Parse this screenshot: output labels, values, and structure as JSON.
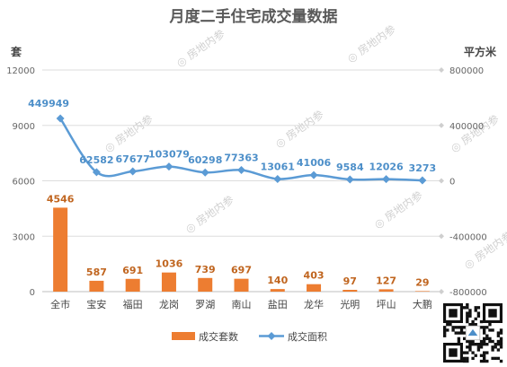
{
  "chart_data": {
    "type": "bar",
    "title": "月度二手住宅成交量数据",
    "categories": [
      "全市",
      "宝安",
      "福田",
      "龙岗",
      "罗湖",
      "南山",
      "盐田",
      "龙华",
      "光明",
      "坪山",
      "大鹏"
    ],
    "y_left_label": "套",
    "y_right_label": "平方米",
    "ylim_left": [
      0,
      12000
    ],
    "yticks_left": [
      "0",
      "3000",
      "6000",
      "9000",
      "12000"
    ],
    "ylim_right": [
      -800000,
      800000
    ],
    "yticks_right": [
      "-800000",
      "-400000",
      "0",
      "400000",
      "800000"
    ],
    "grid": true,
    "legend_position": "bottom",
    "series": [
      {
        "name": "成交套数",
        "type": "bar",
        "axis": "left",
        "color": "#ed7d31",
        "values": [
          4546,
          587,
          691,
          1036,
          739,
          697,
          140,
          403,
          97,
          127,
          29
        ],
        "labels": [
          "4546",
          "587",
          "691",
          "1036",
          "739",
          "697",
          "140",
          "403",
          "97",
          "127",
          "29"
        ]
      },
      {
        "name": "成交面积",
        "type": "line",
        "axis": "right",
        "color": "#5b9bd5",
        "values": [
          449949,
          62582,
          67677,
          103079,
          60298,
          77363,
          13061,
          41006,
          9584,
          12026,
          3273
        ],
        "labels": [
          "449949",
          "62582",
          "67677",
          "103079",
          "60298",
          "77363",
          "13061",
          "41006",
          "9584",
          "12026",
          "3273"
        ]
      }
    ]
  },
  "watermark": "房地内参",
  "qr_icon": "qr-code-icon"
}
